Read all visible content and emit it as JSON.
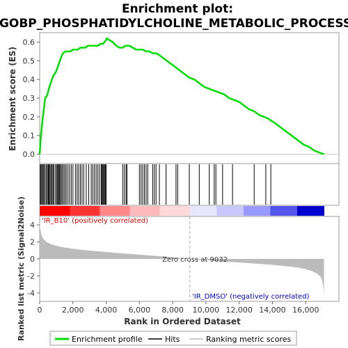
{
  "chart_data": {
    "type": "line",
    "title_line1": "Enrichment plot:",
    "title_line2": "GOBP_PHOSPHATIDYLCHOLINE_METABOLIC_PROCESS",
    "top_panel": {
      "ylabel": "Enrichment score (ES)",
      "ylim": [
        -0.05,
        0.65
      ],
      "yticks": [
        0.0,
        0.1,
        0.2,
        0.3,
        0.4,
        0.5,
        0.6
      ],
      "ytick_labels": [
        "0.0",
        "0.1",
        "0.2",
        "0.3",
        "0.4",
        "0.5",
        "0.6"
      ],
      "series": [
        {
          "name": "Enrichment profile",
          "color": "#00dd00",
          "x": [
            0,
            60,
            120,
            180,
            250,
            330,
            420,
            500,
            580,
            660,
            740,
            820,
            900,
            980,
            1060,
            1140,
            1220,
            1300,
            1400,
            1550,
            1700,
            1850,
            2000,
            2150,
            2300,
            2450,
            2600,
            2750,
            2900,
            3050,
            3200,
            3350,
            3500,
            3650,
            3800,
            3900,
            3980,
            4050,
            4200,
            4400,
            4600,
            4800,
            5000,
            5150,
            5250,
            5400,
            5600,
            5800,
            6000,
            6200,
            6400,
            6600,
            6800,
            7000,
            7200,
            7500,
            7800,
            8100,
            8400,
            8700,
            9000,
            9300,
            9600,
            9900,
            10200,
            10500,
            10800,
            11100,
            11400,
            11700,
            12000,
            12300,
            12600,
            12900,
            13200,
            13500,
            13750,
            13900,
            14100,
            14400,
            14700,
            15000,
            15300,
            15600,
            15900,
            16200,
            16500,
            16800,
            17100
          ],
          "y": [
            0.0,
            0.08,
            0.14,
            0.19,
            0.24,
            0.3,
            0.31,
            0.33,
            0.36,
            0.38,
            0.4,
            0.42,
            0.43,
            0.44,
            0.46,
            0.48,
            0.5,
            0.52,
            0.54,
            0.55,
            0.55,
            0.55,
            0.56,
            0.56,
            0.56,
            0.57,
            0.57,
            0.57,
            0.58,
            0.58,
            0.58,
            0.58,
            0.58,
            0.59,
            0.59,
            0.6,
            0.61,
            0.62,
            0.61,
            0.6,
            0.58,
            0.57,
            0.57,
            0.58,
            0.58,
            0.58,
            0.57,
            0.56,
            0.56,
            0.56,
            0.55,
            0.55,
            0.54,
            0.54,
            0.53,
            0.51,
            0.49,
            0.47,
            0.45,
            0.43,
            0.41,
            0.4,
            0.38,
            0.36,
            0.35,
            0.34,
            0.33,
            0.32,
            0.3,
            0.29,
            0.28,
            0.26,
            0.24,
            0.23,
            0.21,
            0.2,
            0.19,
            0.18,
            0.17,
            0.15,
            0.13,
            0.11,
            0.09,
            0.07,
            0.05,
            0.04,
            0.02,
            0.01,
            0.0
          ]
        }
      ]
    },
    "hits": [
      40,
      90,
      150,
      210,
      260,
      330,
      400,
      470,
      520,
      560,
      620,
      680,
      740,
      800,
      860,
      950,
      1020,
      1080,
      1130,
      1180,
      1230,
      1300,
      1360,
      1450,
      1520,
      1600,
      1700,
      1800,
      1900,
      2000,
      2150,
      2250,
      2350,
      2450,
      2550,
      2650,
      2800,
      2950,
      3100,
      3200,
      3300,
      3400,
      3500,
      3600,
      3700,
      3750,
      3800,
      3850,
      3900,
      3950,
      4000,
      5000,
      5100,
      5200,
      5250,
      6000,
      6100,
      6200,
      6300,
      6400,
      6500,
      6800,
      6900,
      7000,
      7200,
      7600,
      8200,
      8300,
      9000,
      9600,
      10200,
      10500,
      10600,
      11000,
      11600,
      12900,
      13600,
      13900
    ],
    "rank_gradient": {
      "colors": [
        "#ff0000",
        "#ff3333",
        "#ff8888",
        "#ffbbbb",
        "#ffd8d8",
        "#e6e6ff",
        "#c8c8ff",
        "#9999ff",
        "#5555ee",
        "#0000cc"
      ],
      "zero_cross": 9032,
      "max_rank": 17100
    },
    "bottom_panel": {
      "ylabel": "Ranked list metric (Signal2Noise)",
      "ylim": [
        -5,
        5
      ],
      "yticks": [
        -4,
        -2,
        0,
        2,
        4
      ],
      "ytick_labels": [
        "-4",
        "-2",
        "0",
        "2",
        "4"
      ],
      "metric_x": [
        0,
        30,
        80,
        150,
        250,
        400,
        600,
        900,
        1300,
        1800,
        2400,
        3000,
        3600,
        4200,
        5000,
        6000,
        7000,
        8000,
        9032,
        10000,
        11000,
        12000,
        13000,
        14000,
        14800,
        15500,
        16000,
        16400,
        16700,
        16900,
        17000,
        17080,
        17100
      ],
      "metric_y": [
        4.4,
        3.6,
        3.0,
        2.6,
        2.3,
        2.0,
        1.8,
        1.6,
        1.4,
        1.25,
        1.1,
        0.98,
        0.88,
        0.78,
        0.65,
        0.5,
        0.35,
        0.2,
        0.0,
        -0.15,
        -0.3,
        -0.42,
        -0.55,
        -0.7,
        -0.85,
        -1.0,
        -1.2,
        -1.45,
        -1.75,
        -2.1,
        -2.6,
        -3.5,
        -4.9
      ],
      "annotation_pos": "'IR_B10' (positively correlated)",
      "annotation_neg": "'IR_DMSO' (negatively correlated)",
      "zero_cross_label": "Zero cross at 9032"
    },
    "xlabel": "Rank in Ordered Dataset",
    "xlim": [
      0,
      18000
    ],
    "xticks": [
      0,
      2000,
      4000,
      6000,
      8000,
      10000,
      12000,
      14000,
      16000
    ],
    "xtick_labels": [
      "0",
      "2,000",
      "4,000",
      "6,000",
      "8,000",
      "10,000",
      "12,000",
      "14,000",
      "16,000"
    ],
    "legend": [
      {
        "label": "Enrichment profile",
        "color": "#00dd00",
        "style": "thick"
      },
      {
        "label": "Hits",
        "color": "#000000",
        "style": "thin"
      },
      {
        "label": "Ranking metric scores",
        "color": "#bbbbbb",
        "style": "thin"
      }
    ],
    "legend_position": "bottom"
  }
}
